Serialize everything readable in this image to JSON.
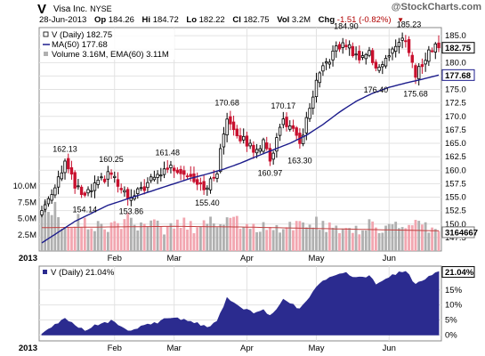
{
  "header": {
    "ticker": "V",
    "company": "Visa Inc.",
    "exchange": "NYSE",
    "watermark": "@StockCharts.com",
    "date": "28-Jun-2013",
    "op_label": "Op",
    "op": "184.26",
    "hi_label": "Hi",
    "hi": "184.72",
    "lo_label": "Lo",
    "lo": "182.22",
    "cl_label": "Cl",
    "cl": "182.75",
    "vol_label": "Vol",
    "vol": "3.2M",
    "chg_label": "Chg",
    "chg": "-1.51 (-0.82%)",
    "down_color": "#b00000"
  },
  "chart_data": [
    {
      "type": "candlestick",
      "legend": [
        "V (Daily) 182.75",
        "MA(50) 177.68",
        "Volume 3.16M, EMA(60) 3.11M"
      ],
      "y_ticks": [
        147.5,
        150.0,
        152.5,
        155.0,
        157.5,
        160.0,
        162.5,
        165.0,
        167.5,
        170.0,
        172.5,
        175.0,
        177.5,
        180.0,
        182.5,
        185.0
      ],
      "y_tick_labels": [
        "147.5",
        "150.0",
        "152.5",
        "155.0",
        "157.5",
        "160.0",
        "162.5",
        "165.0",
        "167.5",
        "170.0",
        "172.5",
        "175.0",
        "177.5",
        "180.0",
        "182.5",
        "185.0"
      ],
      "ylim": [
        145.0,
        186.5
      ],
      "last_price_label": "182.75",
      "ma_label": "177.68",
      "volume_label": "3164667",
      "volume_ticks": [
        "2.5M",
        "5.0M",
        "7.5M",
        "10.0M"
      ],
      "volume_tick_values": [
        2.5,
        5.0,
        7.5,
        10.0
      ],
      "volume_ylim": [
        0,
        14
      ],
      "months": [
        "2013",
        "Feb",
        "Mar",
        "Apr",
        "May",
        "Jun"
      ],
      "month_days": [
        0,
        22,
        40,
        62,
        83,
        105
      ],
      "annotations": [
        {
          "text": "162.13",
          "day": 7,
          "price": 162.13,
          "pos": "above"
        },
        {
          "text": "160.25",
          "day": 21,
          "price": 160.25,
          "pos": "above"
        },
        {
          "text": "161.48",
          "day": 38,
          "price": 161.48,
          "pos": "above"
        },
        {
          "text": "170.68",
          "day": 56,
          "price": 170.68,
          "pos": "above"
        },
        {
          "text": "170.17",
          "day": 73,
          "price": 170.17,
          "pos": "above"
        },
        {
          "text": "184.90",
          "day": 92,
          "price": 184.9,
          "pos": "above"
        },
        {
          "text": "185.23",
          "day": 111,
          "price": 185.23,
          "pos": "above"
        },
        {
          "text": "154.14",
          "day": 13,
          "price": 154.14,
          "pos": "below"
        },
        {
          "text": "153.86",
          "day": 27,
          "price": 153.86,
          "pos": "below"
        },
        {
          "text": "155.40",
          "day": 50,
          "price": 155.4,
          "pos": "below"
        },
        {
          "text": "160.97",
          "day": 69,
          "price": 160.97,
          "pos": "below"
        },
        {
          "text": "163.30",
          "day": 78,
          "price": 163.3,
          "pos": "below"
        },
        {
          "text": "176.40",
          "day": 101,
          "price": 176.4,
          "pos": "below"
        },
        {
          "text": "175.68",
          "day": 113,
          "price": 175.68,
          "pos": "below"
        }
      ],
      "price_anchors": [
        [
          0,
          152.5
        ],
        [
          3,
          156
        ],
        [
          7,
          161.5
        ],
        [
          10,
          157
        ],
        [
          13,
          155
        ],
        [
          16,
          157
        ],
        [
          21,
          159.5
        ],
        [
          24,
          156
        ],
        [
          27,
          154.5
        ],
        [
          31,
          157
        ],
        [
          35,
          159
        ],
        [
          38,
          160.5
        ],
        [
          41,
          160.2
        ],
        [
          45,
          159
        ],
        [
          50,
          156.5
        ],
        [
          53,
          160
        ],
        [
          56,
          170
        ],
        [
          60,
          166
        ],
        [
          64,
          164
        ],
        [
          67,
          165
        ],
        [
          69,
          162
        ],
        [
          73,
          169.5
        ],
        [
          75,
          168
        ],
        [
          78,
          165
        ],
        [
          81,
          171
        ],
        [
          83,
          176
        ],
        [
          86,
          180
        ],
        [
          89,
          182.5
        ],
        [
          92,
          183.5
        ],
        [
          95,
          181
        ],
        [
          99,
          182
        ],
        [
          101,
          178.5
        ],
        [
          104,
          181
        ],
        [
          107,
          183
        ],
        [
          110,
          184.5
        ],
        [
          113,
          177.5
        ],
        [
          116,
          181
        ],
        [
          119,
          183.5
        ],
        [
          120,
          182.75
        ]
      ],
      "ma_anchors": [
        [
          0,
          146.5
        ],
        [
          5,
          148.5
        ],
        [
          10,
          150.5
        ],
        [
          15,
          152
        ],
        [
          20,
          153.5
        ],
        [
          25,
          154.5
        ],
        [
          30,
          155.5
        ],
        [
          35,
          156.5
        ],
        [
          40,
          157.5
        ],
        [
          45,
          158.5
        ],
        [
          50,
          159.3
        ],
        [
          55,
          160.2
        ],
        [
          60,
          161.3
        ],
        [
          65,
          162.6
        ],
        [
          70,
          163.8
        ],
        [
          75,
          165
        ],
        [
          80,
          166.5
        ],
        [
          85,
          168.5
        ],
        [
          90,
          170.8
        ],
        [
          95,
          172.8
        ],
        [
          100,
          174.3
        ],
        [
          105,
          175.4
        ],
        [
          110,
          176.2
        ],
        [
          115,
          176.9
        ],
        [
          120,
          177.68
        ]
      ],
      "vol_anchors": [
        [
          0,
          5.5
        ],
        [
          3,
          7
        ],
        [
          6,
          4
        ],
        [
          10,
          4.5
        ],
        [
          14,
          4.2
        ],
        [
          18,
          3.5
        ],
        [
          22,
          4
        ],
        [
          26,
          4.6
        ],
        [
          30,
          3.4
        ],
        [
          34,
          3.8
        ],
        [
          38,
          3.2
        ],
        [
          42,
          4.3
        ],
        [
          46,
          3.6
        ],
        [
          50,
          4.5
        ],
        [
          54,
          4.3
        ],
        [
          57,
          5
        ],
        [
          60,
          4.2
        ],
        [
          64,
          3.4
        ],
        [
          68,
          3.8
        ],
        [
          72,
          3.2
        ],
        [
          75,
          4.5
        ],
        [
          79,
          3.4
        ],
        [
          82,
          4.8
        ],
        [
          85,
          3.8
        ],
        [
          88,
          3.4
        ],
        [
          91,
          3.6
        ],
        [
          95,
          3.2
        ],
        [
          99,
          3.8
        ],
        [
          103,
          3.6
        ],
        [
          106,
          4
        ],
        [
          110,
          3.5
        ],
        [
          114,
          3.8
        ],
        [
          117,
          3.3
        ],
        [
          120,
          3.2
        ]
      ],
      "vol_ema_anchors": [
        [
          0,
          3.6
        ],
        [
          20,
          3.7
        ],
        [
          40,
          3.8
        ],
        [
          60,
          3.7
        ],
        [
          80,
          3.5
        ],
        [
          100,
          3.3
        ],
        [
          120,
          3.11
        ]
      ],
      "up_color": "#000000",
      "down_color": "#c8102e",
      "ma_color": "#1c1c8c",
      "volume_up_color": "#b0b0b0",
      "volume_down_color": "#f2a6b0"
    },
    {
      "type": "area",
      "legend": "V (Daily) 21.04%",
      "last_label": "21.04%",
      "y_ticks": [
        0,
        5,
        10,
        15
      ],
      "y_tick_labels": [
        "0%",
        "5%",
        "10%",
        "15%"
      ],
      "ylim": [
        -2,
        23
      ],
      "months": [
        "2013",
        "Feb",
        "Mar",
        "Apr",
        "May",
        "Jun"
      ],
      "month_days": [
        0,
        22,
        40,
        62,
        83,
        105
      ],
      "anchors": [
        [
          0,
          0
        ],
        [
          3,
          2.5
        ],
        [
          7,
          5.7
        ],
        [
          10,
          3
        ],
        [
          13,
          1.5
        ],
        [
          16,
          3
        ],
        [
          21,
          4.5
        ],
        [
          24,
          2.5
        ],
        [
          27,
          1.2
        ],
        [
          31,
          3
        ],
        [
          35,
          4
        ],
        [
          38,
          5.5
        ],
        [
          41,
          5.3
        ],
        [
          45,
          4.5
        ],
        [
          50,
          2.5
        ],
        [
          53,
          4.5
        ],
        [
          56,
          12
        ],
        [
          60,
          9
        ],
        [
          64,
          7.5
        ],
        [
          67,
          8
        ],
        [
          69,
          6.2
        ],
        [
          73,
          11.5
        ],
        [
          75,
          10.5
        ],
        [
          78,
          8.5
        ],
        [
          81,
          12.5
        ],
        [
          83,
          16
        ],
        [
          86,
          18.5
        ],
        [
          89,
          20
        ],
        [
          92,
          20.8
        ],
        [
          95,
          19
        ],
        [
          99,
          19.5
        ],
        [
          101,
          17
        ],
        [
          104,
          18.8
        ],
        [
          107,
          20.2
        ],
        [
          110,
          21.5
        ],
        [
          113,
          16.5
        ],
        [
          116,
          18.8
        ],
        [
          119,
          21
        ],
        [
          120,
          21.04
        ]
      ],
      "fill_color": "#2b2b8f"
    }
  ]
}
